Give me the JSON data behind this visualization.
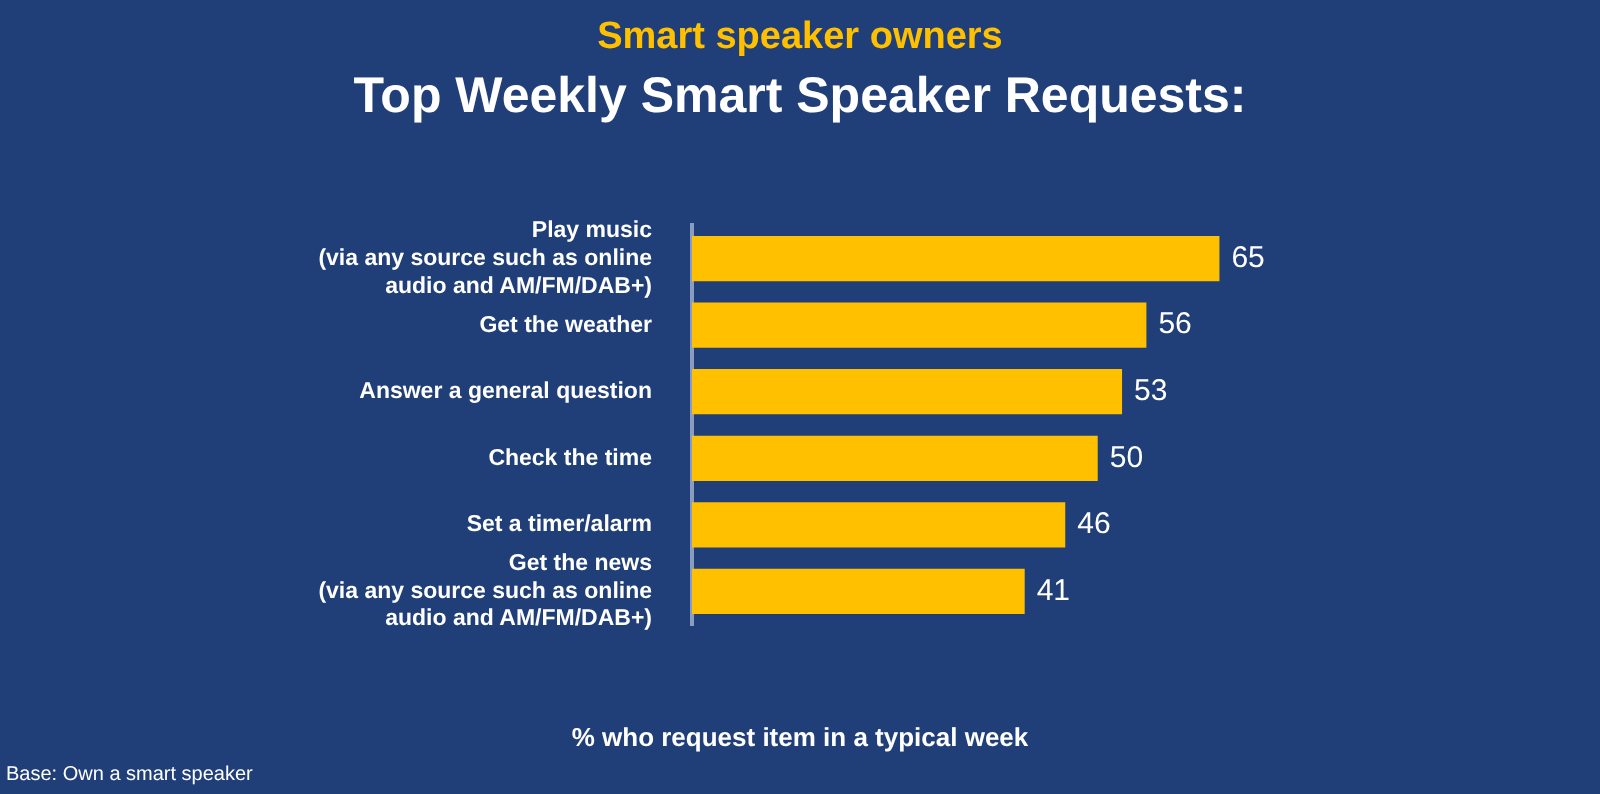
{
  "chart_data": {
    "type": "bar",
    "orientation": "horizontal",
    "subtitle": "Smart speaker owners",
    "title": "Top Weekly Smart Speaker Requests:",
    "xlabel": "% who request item in a typical week",
    "categories": [
      "Play music\n(via any source such as online\naudio and AM/FM/DAB+)",
      "Get the weather",
      "Answer a general question",
      "Check the time",
      "Set a timer/alarm",
      "Get the news\n(via any source such as online\naudio and AM/FM/DAB+)"
    ],
    "values": [
      65,
      56,
      53,
      50,
      46,
      41
    ],
    "color": "#ffc000",
    "data_labels": true,
    "legend": false,
    "tick_labels": "y",
    "annotations": [
      "Base: Own a smart speaker"
    ]
  }
}
